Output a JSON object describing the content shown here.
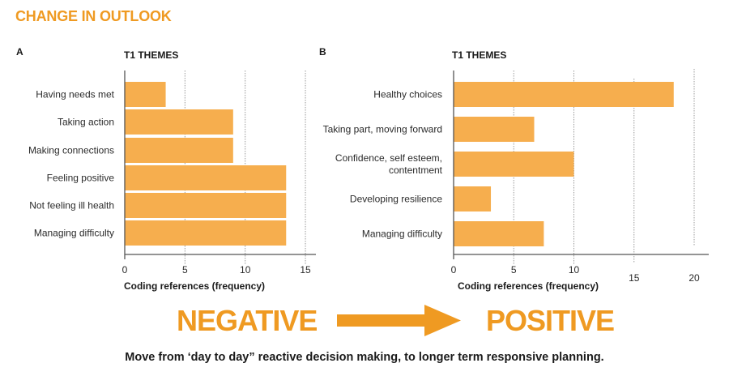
{
  "header": {
    "title": "CHANGE IN OUTLOOK"
  },
  "colors": {
    "accent": "#ef9a22",
    "bar": "#f6ae4e",
    "axis": "#555555",
    "grid": "#9a9a9a"
  },
  "panels": {
    "a": {
      "letter": "A",
      "chart_title": "T1 THEMES"
    },
    "b": {
      "letter": "B",
      "chart_title": "T1 THEMES"
    }
  },
  "bottom": {
    "from_word": "NEGATIVE",
    "to_word": "POSITIVE",
    "arrow_icon": "right-arrow-icon",
    "caption": "Move from ‘day to day” reactive decision making, to longer term responsive planning."
  },
  "chart_data": [
    {
      "type": "bar",
      "orientation": "horizontal",
      "panel": "A",
      "title": "T1 THEMES",
      "xlabel": "Coding references (frequency)",
      "ylabel": "",
      "categories": [
        "Having needs met",
        "Taking action",
        "Making connections",
        "Feeling positive",
        "Not feeling ill health",
        "Managing difficulty"
      ],
      "values": [
        3.4,
        9,
        9,
        13.4,
        13.4,
        13.4
      ],
      "xlim": [
        0,
        15
      ],
      "xticks": [
        0,
        5,
        10,
        15
      ],
      "xtick_labels": [
        "0",
        "5",
        "10",
        "15"
      ],
      "grid": "vertical dotted",
      "legend": "none"
    },
    {
      "type": "bar",
      "orientation": "horizontal",
      "panel": "B",
      "title": "T1 THEMES",
      "xlabel": "Coding references (frequency)",
      "ylabel": "",
      "categories": [
        [
          "Healthy choices"
        ],
        [
          "Taking part, moving forward"
        ],
        [
          "Confidence, self esteem,",
          "contentment"
        ],
        [
          "Developing resilience"
        ],
        [
          "Managing difficulty"
        ]
      ],
      "values": [
        18.3,
        6.7,
        10,
        3.1,
        7.5
      ],
      "xlim": [
        0,
        20
      ],
      "xticks": [
        0,
        5,
        10,
        15,
        20
      ],
      "xtick_labels": [
        "0",
        "5",
        "10",
        "15",
        "20"
      ],
      "grid": "vertical dotted",
      "legend": "none"
    }
  ]
}
